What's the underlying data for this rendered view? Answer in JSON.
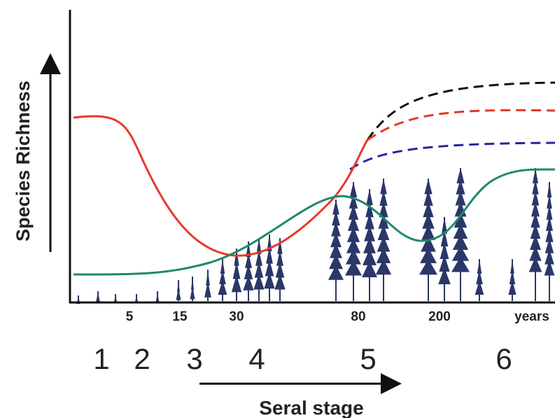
{
  "y_axis_label": "Species Richness",
  "x_ticks": [
    "5",
    "15",
    "30",
    "80",
    "200",
    "years"
  ],
  "stages": [
    "1",
    "2",
    "3",
    "4",
    "5",
    "6"
  ],
  "x_axis_label": "Seral stage"
}
